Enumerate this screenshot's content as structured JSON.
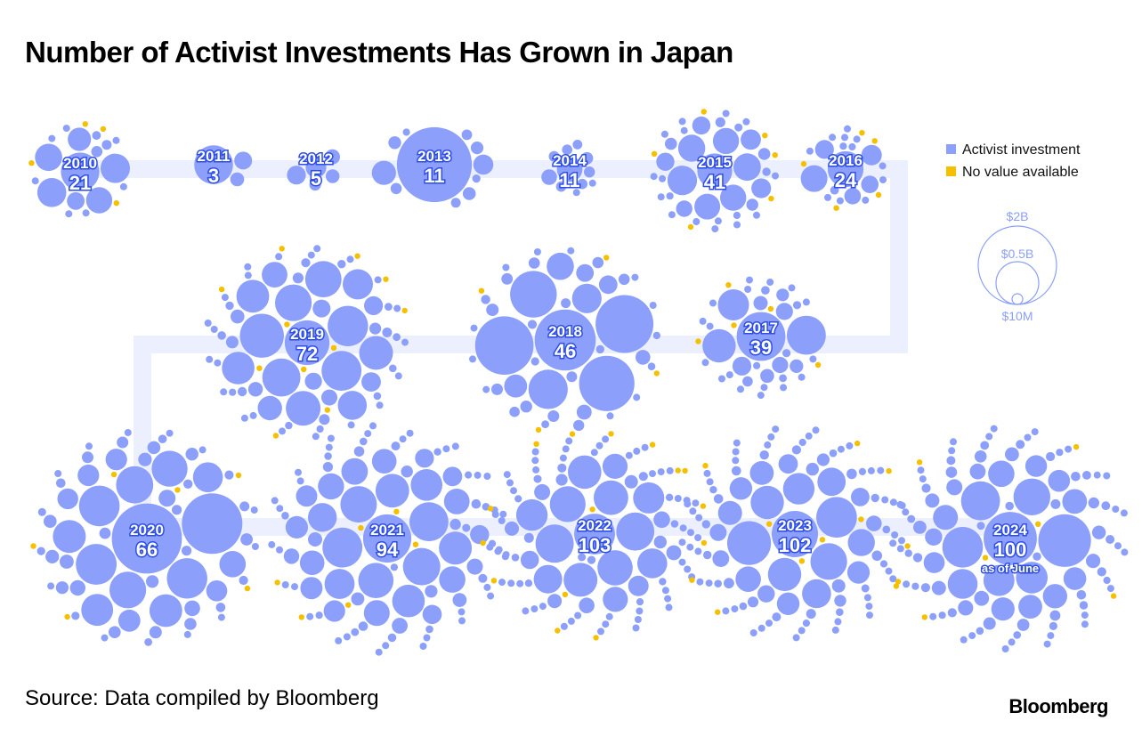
{
  "title": "Number of Activist Investments Has Grown in Japan",
  "source": "Source: Data compiled by Bloomberg",
  "brand": "Bloomberg",
  "colors": {
    "investment": "#8b9ffb",
    "no_value": "#f5c000",
    "path": "#eceffd",
    "label_outline": "#2e4de8"
  },
  "chart_data": {
    "type": "packed-bubble",
    "title": "Number of Activist Investments Has Grown in Japan",
    "legend": {
      "placement": "top-right",
      "entries": [
        "Activist investment",
        "No value available"
      ]
    },
    "size_legend": [
      "$2B",
      "$0.5B",
      "$10M"
    ],
    "years": [
      {
        "year": "2010",
        "count": "21"
      },
      {
        "year": "2011",
        "count": "3"
      },
      {
        "year": "2012",
        "count": "5"
      },
      {
        "year": "2013",
        "count": "11"
      },
      {
        "year": "2014",
        "count": "11"
      },
      {
        "year": "2015",
        "count": "41"
      },
      {
        "year": "2016",
        "count": "24"
      },
      {
        "year": "2017",
        "count": "39"
      },
      {
        "year": "2018",
        "count": "46"
      },
      {
        "year": "2019",
        "count": "72"
      },
      {
        "year": "2020",
        "count": "66"
      },
      {
        "year": "2021",
        "count": "94"
      },
      {
        "year": "2022",
        "count": "103"
      },
      {
        "year": "2023",
        "count": "102"
      },
      {
        "year": "2024",
        "count": "100",
        "note": "as of June"
      }
    ]
  }
}
